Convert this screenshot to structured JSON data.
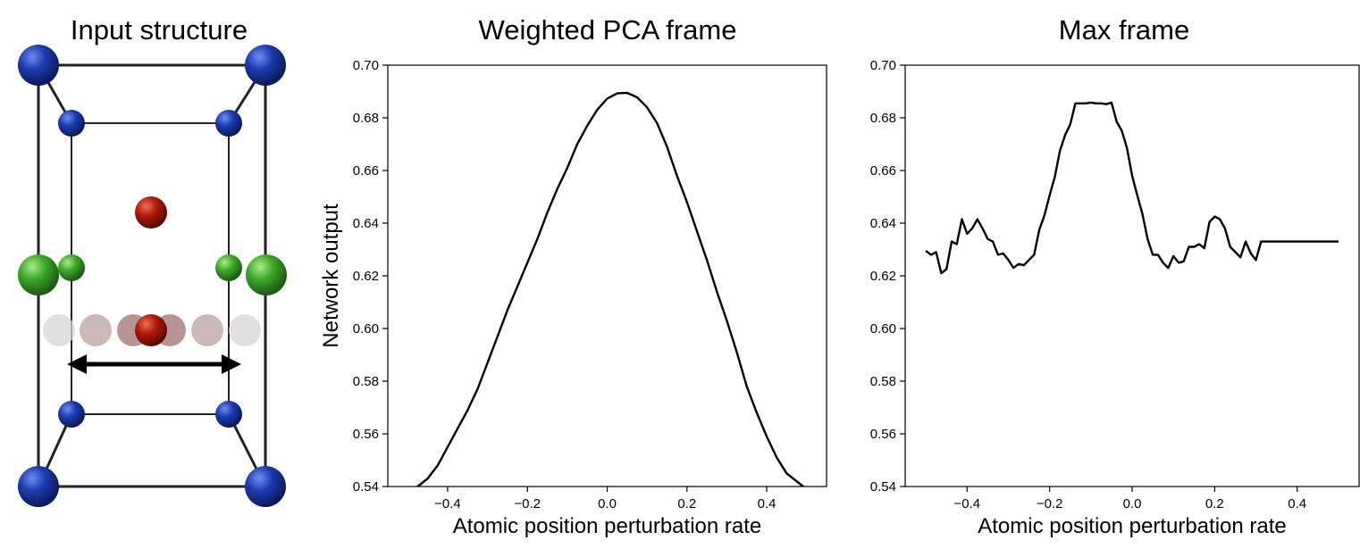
{
  "titles": {
    "structure": "Input structure",
    "pca": "Weighted PCA frame",
    "max": "Max frame"
  },
  "colors": {
    "blue_atom": "#1c3cb0",
    "green_atom": "#3fa82a",
    "red_atom": "#b01a0a",
    "ghost_atom": "#c9b8b8",
    "line": "#000000"
  },
  "chart_data": [
    {
      "type": "line",
      "title": "Weighted PCA frame",
      "xlabel": "Atomic position perturbation rate",
      "ylabel": "Network output",
      "xlim": [
        -0.55,
        0.55
      ],
      "ylim": [
        0.54,
        0.7
      ],
      "xticks": [
        -0.4,
        -0.2,
        0.0,
        0.2,
        0.4
      ],
      "xtick_labels": [
        "−0.4",
        "−0.2",
        "0.0",
        "0.2",
        "0.4"
      ],
      "yticks": [
        0.54,
        0.56,
        0.58,
        0.6,
        0.62,
        0.64,
        0.66,
        0.68,
        0.7
      ],
      "ytick_labels": [
        "0.54",
        "0.56",
        "0.58",
        "0.60",
        "0.62",
        "0.64",
        "0.66",
        "0.68",
        "0.70"
      ],
      "grid": false,
      "series": [
        {
          "x": [
            -0.5,
            -0.475,
            -0.45,
            -0.425,
            -0.4,
            -0.375,
            -0.35,
            -0.325,
            -0.3,
            -0.275,
            -0.25,
            -0.225,
            -0.2,
            -0.175,
            -0.15,
            -0.125,
            -0.1,
            -0.075,
            -0.05,
            -0.025,
            0.0,
            0.025,
            0.05,
            0.075,
            0.1,
            0.125,
            0.15,
            0.175,
            0.2,
            0.225,
            0.25,
            0.275,
            0.3,
            0.325,
            0.35,
            0.375,
            0.4,
            0.425,
            0.45,
            0.475,
            0.5
          ],
          "y": [
            0.537,
            0.54,
            0.543,
            0.548,
            0.555,
            0.562,
            0.569,
            0.577,
            0.587,
            0.597,
            0.607,
            0.616,
            0.625,
            0.634,
            0.644,
            0.653,
            0.661,
            0.67,
            0.677,
            0.683,
            0.6873,
            0.6893,
            0.6895,
            0.6878,
            0.684,
            0.678,
            0.669,
            0.658,
            0.648,
            0.637,
            0.626,
            0.614,
            0.603,
            0.591,
            0.578,
            0.568,
            0.559,
            0.551,
            0.545,
            0.542,
            0.539
          ]
        }
      ]
    },
    {
      "type": "line",
      "title": "Max frame",
      "xlabel": "Atomic position perturbation rate",
      "ylabel": "",
      "xlim": [
        -0.55,
        0.55
      ],
      "ylim": [
        0.54,
        0.7
      ],
      "xticks": [
        -0.4,
        -0.2,
        0.0,
        0.2,
        0.4
      ],
      "xtick_labels": [
        "−0.4",
        "−0.2",
        "0.0",
        "0.2",
        "0.4"
      ],
      "yticks": [
        0.54,
        0.56,
        0.58,
        0.6,
        0.62,
        0.64,
        0.66,
        0.68,
        0.7
      ],
      "ytick_labels": [
        "0.54",
        "0.56",
        "0.58",
        "0.60",
        "0.62",
        "0.64",
        "0.66",
        "0.68",
        "0.70"
      ],
      "grid": false,
      "series": [
        {
          "x": [
            -0.5,
            -0.4875,
            -0.475,
            -0.4625,
            -0.45,
            -0.4375,
            -0.425,
            -0.4125,
            -0.4,
            -0.3875,
            -0.375,
            -0.3625,
            -0.35,
            -0.3375,
            -0.325,
            -0.3125,
            -0.3,
            -0.2875,
            -0.275,
            -0.2625,
            -0.25,
            -0.2375,
            -0.225,
            -0.2125,
            -0.2,
            -0.1875,
            -0.175,
            -0.1625,
            -0.15,
            -0.1375,
            -0.125,
            -0.1125,
            -0.1,
            -0.0875,
            -0.075,
            -0.0625,
            -0.05,
            -0.0375,
            -0.025,
            -0.0125,
            0.0,
            0.0125,
            0.025,
            0.0375,
            0.05,
            0.0625,
            0.075,
            0.0875,
            0.1,
            0.1125,
            0.125,
            0.1375,
            0.15,
            0.1625,
            0.175,
            0.1875,
            0.2,
            0.2125,
            0.225,
            0.2375,
            0.25,
            0.2625,
            0.275,
            0.2875,
            0.3,
            0.3125,
            0.325,
            0.3375,
            0.35,
            0.3625,
            0.375,
            0.3875,
            0.4,
            0.4125,
            0.425,
            0.4375,
            0.45,
            0.4625,
            0.475,
            0.4875,
            0.5
          ],
          "y": [
            0.6295,
            0.628,
            0.629,
            0.621,
            0.6225,
            0.633,
            0.632,
            0.6415,
            0.636,
            0.638,
            0.6415,
            0.638,
            0.634,
            0.633,
            0.628,
            0.6285,
            0.626,
            0.623,
            0.6245,
            0.624,
            0.626,
            0.628,
            0.6375,
            0.643,
            0.6505,
            0.6575,
            0.6675,
            0.6735,
            0.6775,
            0.6855,
            0.6855,
            0.6855,
            0.6858,
            0.6855,
            0.6855,
            0.6852,
            0.6858,
            0.6785,
            0.675,
            0.6685,
            0.658,
            0.6505,
            0.6435,
            0.634,
            0.628,
            0.628,
            0.625,
            0.623,
            0.6275,
            0.625,
            0.6255,
            0.631,
            0.631,
            0.632,
            0.6305,
            0.6405,
            0.6425,
            0.6415,
            0.638,
            0.631,
            0.629,
            0.627,
            0.633,
            0.6285,
            0.626,
            0.633,
            0.633,
            0.633,
            0.633,
            0.633,
            0.633,
            0.633,
            0.633,
            0.633,
            0.633,
            0.633,
            0.633,
            0.633,
            0.633,
            0.633,
            0.633
          ]
        }
      ]
    }
  ]
}
